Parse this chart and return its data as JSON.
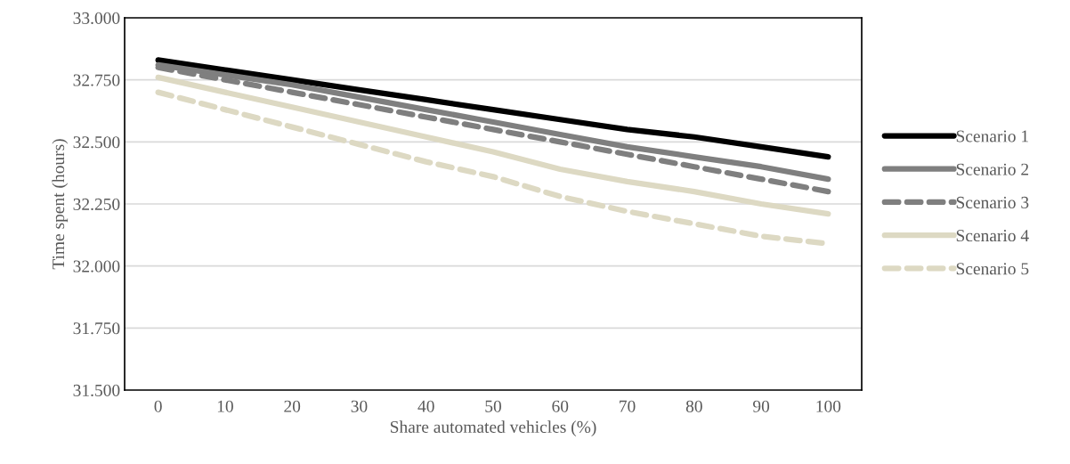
{
  "chart_data": {
    "type": "line",
    "xlabel": "Share automated vehicles (%)",
    "ylabel": "Time spent (hours)",
    "categories": [
      "0",
      "10",
      "20",
      "30",
      "40",
      "50",
      "60",
      "70",
      "80",
      "90",
      "100"
    ],
    "series": [
      {
        "name": "Scenario 1",
        "color": "#000000",
        "line_style": "solid",
        "values": [
          32830,
          32790,
          32750,
          32710,
          32670,
          32630,
          32590,
          32550,
          32520,
          32480,
          32440
        ]
      },
      {
        "name": "Scenario 2",
        "color": "#7f7f7f",
        "line_style": "solid",
        "values": [
          32810,
          32770,
          32730,
          32680,
          32630,
          32580,
          32530,
          32480,
          32440,
          32400,
          32350
        ]
      },
      {
        "name": "Scenario 3",
        "color": "#7f7f7f",
        "line_style": "dashed",
        "values": [
          32800,
          32750,
          32700,
          32650,
          32600,
          32550,
          32500,
          32450,
          32400,
          32350,
          32300
        ]
      },
      {
        "name": "Scenario 4",
        "color": "#ddd9c3",
        "line_style": "solid",
        "values": [
          32760,
          32700,
          32640,
          32580,
          32520,
          32460,
          32390,
          32340,
          32300,
          32250,
          32210
        ]
      },
      {
        "name": "Scenario 5",
        "color": "#ddd9c3",
        "line_style": "dashed",
        "values": [
          32700,
          32630,
          32560,
          32490,
          32420,
          32360,
          32280,
          32220,
          32170,
          32120,
          32090
        ]
      }
    ],
    "ylim": [
      31500,
      33000
    ],
    "yticks": [
      {
        "value": 31500,
        "label": "31.500"
      },
      {
        "value": 31750,
        "label": "31.750"
      },
      {
        "value": 32000,
        "label": "32.000"
      },
      {
        "value": 32250,
        "label": "32.250"
      },
      {
        "value": 32500,
        "label": "32.500"
      },
      {
        "value": 32750,
        "label": "32.750"
      },
      {
        "value": 33000,
        "label": "33.000"
      }
    ],
    "grid": "y",
    "legend": "right",
    "marker": "none"
  }
}
